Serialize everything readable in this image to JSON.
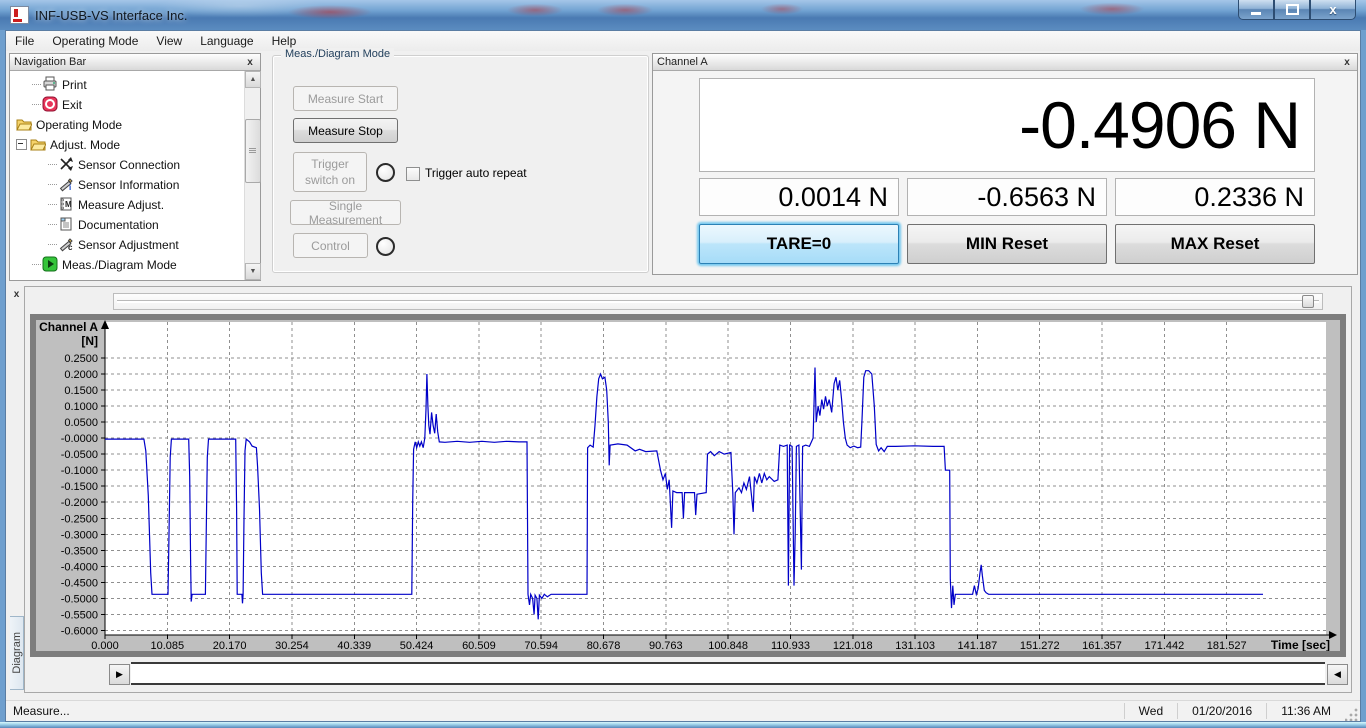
{
  "window": {
    "title": "INF-USB-VS Interface Inc."
  },
  "menu": {
    "items": [
      "File",
      "Operating Mode",
      "View",
      "Language",
      "Help"
    ]
  },
  "nav": {
    "title": "Navigation Bar",
    "items": [
      {
        "label": "Print",
        "icon": "printer",
        "indent": 1
      },
      {
        "label": "Exit",
        "icon": "exit",
        "indent": 1
      },
      {
        "label": "Operating Mode",
        "icon": "folder",
        "indent": 0
      },
      {
        "label": "Adjust. Mode",
        "icon": "folder",
        "indent": 0,
        "expander": true
      },
      {
        "label": "Sensor Connection",
        "icon": "sensor-connection",
        "indent": 2
      },
      {
        "label": "Sensor Information",
        "icon": "sensor-information",
        "indent": 2
      },
      {
        "label": "Measure Adjust.",
        "icon": "measure-adjust",
        "indent": 2
      },
      {
        "label": "Documentation",
        "icon": "documentation",
        "indent": 2
      },
      {
        "label": "Sensor Adjustment",
        "icon": "sensor-adjustment",
        "indent": 2
      },
      {
        "label": "Meas./Diagram Mode",
        "icon": "meas-diagram",
        "indent": 1
      }
    ]
  },
  "meas": {
    "title": "Meas./Diagram Mode",
    "measure_start": "Measure Start",
    "measure_stop": "Measure Stop",
    "trigger_switch_on": "Trigger switch on",
    "single_measurement": "Single Measurement",
    "control": "Control",
    "trigger_auto_repeat": "Trigger auto repeat"
  },
  "channel": {
    "title": "Channel A",
    "main_value": "-0.4906 N",
    "tare_value": "0.0014 N",
    "min_value": "-0.6563 N",
    "max_value": "0.2336 N",
    "tare_button": "TARE=0",
    "min_button": "MIN Reset",
    "max_button": "MAX Reset"
  },
  "diagram": {
    "tab_label": "Diagram"
  },
  "statusbar": {
    "message": "Measure...",
    "day": "Wed",
    "date": "01/20/2016",
    "time": "11:36 AM"
  },
  "chart_data": {
    "type": "line",
    "title": "Channel A",
    "y_unit": "[N]",
    "xlabel": "Time [sec]",
    "grid": "dashed",
    "line_color": "#0000c8",
    "xlim": [
      0,
      197.6
    ],
    "ylim": [
      -0.614,
      0.362
    ],
    "xticks": [
      "0.000",
      "10.085",
      "20.170",
      "30.254",
      "40.339",
      "50.424",
      "60.509",
      "70.594",
      "80.678",
      "90.763",
      "100.848",
      "110.933",
      "121.018",
      "131.103",
      "141.187",
      "151.272",
      "161.357",
      "171.442",
      "181.527"
    ],
    "yticks": [
      "0.2500",
      "0.2000",
      "0.1500",
      "0.1000",
      "0.0500",
      "-0.0000",
      "-0.0500",
      "-0.1000",
      "-0.1500",
      "-0.2000",
      "-0.2500",
      "-0.3000",
      "-0.3500",
      "-0.4000",
      "-0.4500",
      "-0.5000",
      "-0.5500",
      "-0.6000"
    ],
    "series": [
      {
        "name": "Channel A",
        "points": [
          [
            0,
            -0.003
          ],
          [
            6.3,
            -0.003
          ],
          [
            6.6,
            -0.04
          ],
          [
            7.0,
            -0.18
          ],
          [
            7.4,
            -0.42
          ],
          [
            7.6,
            -0.487
          ],
          [
            10.2,
            -0.487
          ],
          [
            10.35,
            -0.3
          ],
          [
            10.55,
            -0.06
          ],
          [
            10.75,
            -0.003
          ],
          [
            13.55,
            -0.003
          ],
          [
            13.7,
            -0.12
          ],
          [
            13.85,
            -0.38
          ],
          [
            13.95,
            -0.51
          ],
          [
            14.1,
            -0.487
          ],
          [
            16.25,
            -0.487
          ],
          [
            16.4,
            -0.28
          ],
          [
            16.55,
            -0.06
          ],
          [
            16.75,
            -0.003
          ],
          [
            21.15,
            -0.003
          ],
          [
            21.3,
            -0.22
          ],
          [
            21.4,
            -0.487
          ],
          [
            22.15,
            -0.487
          ],
          [
            22.25,
            -0.515
          ],
          [
            22.35,
            -0.487
          ],
          [
            22.5,
            -0.25
          ],
          [
            22.65,
            -0.04
          ],
          [
            22.85,
            -0.003
          ],
          [
            23.4,
            -0.012
          ],
          [
            23.8,
            -0.025
          ],
          [
            24.5,
            -0.03
          ],
          [
            24.7,
            -0.09
          ],
          [
            25.0,
            -0.22
          ],
          [
            25.3,
            -0.42
          ],
          [
            25.5,
            -0.487
          ],
          [
            49.65,
            -0.487
          ],
          [
            49.8,
            -0.2
          ],
          [
            49.95,
            -0.035
          ],
          [
            50.2,
            -0.012
          ],
          [
            50.45,
            -0.03
          ],
          [
            50.7,
            -0.012
          ],
          [
            50.95,
            -0.025
          ],
          [
            51.2,
            -0.012
          ],
          [
            51.5,
            -0.03
          ],
          [
            51.75,
            0
          ],
          [
            51.95,
            0.09
          ],
          [
            52.1,
            0.2
          ],
          [
            52.25,
            0.1
          ],
          [
            52.4,
            0.04
          ],
          [
            52.6,
            0.012
          ],
          [
            52.85,
            0.08
          ],
          [
            53.1,
            0.04
          ],
          [
            53.35,
            0.015
          ],
          [
            53.6,
            0.075
          ],
          [
            53.85,
            0.02
          ],
          [
            54.1,
            -0.012
          ],
          [
            55,
            -0.013
          ],
          [
            57,
            -0.01
          ],
          [
            59,
            -0.013
          ],
          [
            61,
            -0.01
          ],
          [
            63,
            -0.013
          ],
          [
            65,
            -0.01
          ],
          [
            67,
            -0.012
          ],
          [
            68.3,
            -0.012
          ],
          [
            68.45,
            -0.487
          ],
          [
            68.7,
            -0.52
          ],
          [
            68.9,
            -0.487
          ],
          [
            69.2,
            -0.5
          ],
          [
            69.45,
            -0.55
          ],
          [
            69.6,
            -0.49
          ],
          [
            69.9,
            -0.5
          ],
          [
            70.1,
            -0.565
          ],
          [
            70.3,
            -0.49
          ],
          [
            70.7,
            -0.5
          ],
          [
            71.1,
            -0.487
          ],
          [
            71.6,
            -0.495
          ],
          [
            72.2,
            -0.487
          ],
          [
            78.0,
            -0.487
          ],
          [
            78.1,
            -0.03
          ],
          [
            78.5,
            -0.022
          ],
          [
            79.0,
            -0.028
          ],
          [
            79.3,
            0.04
          ],
          [
            79.6,
            0.13
          ],
          [
            79.9,
            0.185
          ],
          [
            80.2,
            0.2
          ],
          [
            80.5,
            0.185
          ],
          [
            80.9,
            0.19
          ],
          [
            81.2,
            0.15
          ],
          [
            81.45,
            0.05
          ],
          [
            81.6,
            -0.085
          ],
          [
            81.75,
            -0.022
          ],
          [
            83,
            -0.018
          ],
          [
            84.5,
            -0.022
          ],
          [
            85.8,
            -0.04
          ],
          [
            86.5,
            -0.035
          ],
          [
            87.5,
            -0.042
          ],
          [
            89.3,
            -0.04
          ],
          [
            89.9,
            -0.1
          ],
          [
            90.3,
            -0.13
          ],
          [
            90.7,
            -0.11
          ],
          [
            91.0,
            -0.16
          ],
          [
            91.3,
            -0.13
          ],
          [
            91.7,
            -0.28
          ],
          [
            91.9,
            -0.165
          ],
          [
            92.5,
            -0.17
          ],
          [
            93.4,
            -0.17
          ],
          [
            93.6,
            -0.25
          ],
          [
            93.8,
            -0.17
          ],
          [
            95.4,
            -0.17
          ],
          [
            95.6,
            -0.24
          ],
          [
            95.8,
            -0.175
          ],
          [
            97.3,
            -0.17
          ],
          [
            97.5,
            -0.05
          ],
          [
            98.0,
            -0.042
          ],
          [
            98.6,
            -0.055
          ],
          [
            99.4,
            -0.042
          ],
          [
            100.2,
            -0.05
          ],
          [
            101.3,
            -0.045
          ],
          [
            101.6,
            -0.17
          ],
          [
            101.8,
            -0.3
          ],
          [
            102.0,
            -0.17
          ],
          [
            102.6,
            -0.155
          ],
          [
            103.0,
            -0.17
          ],
          [
            103.4,
            -0.14
          ],
          [
            103.8,
            -0.16
          ],
          [
            104.3,
            -0.12
          ],
          [
            104.9,
            -0.23
          ],
          [
            105.1,
            -0.12
          ],
          [
            105.5,
            -0.14
          ],
          [
            105.9,
            -0.11
          ],
          [
            106.3,
            -0.14
          ],
          [
            106.7,
            -0.11
          ],
          [
            107.1,
            -0.13
          ],
          [
            107.5,
            -0.12
          ],
          [
            108.3,
            -0.135
          ],
          [
            108.9,
            -0.13
          ],
          [
            109.2,
            -0.022
          ],
          [
            109.8,
            -0.026
          ],
          [
            110.4,
            -0.022
          ],
          [
            110.6,
            -0.46
          ],
          [
            110.8,
            -0.022
          ],
          [
            111.2,
            -0.026
          ],
          [
            111.5,
            -0.46
          ],
          [
            111.7,
            -0.3
          ],
          [
            111.9,
            -0.026
          ],
          [
            112.3,
            -0.022
          ],
          [
            112.7,
            -0.41
          ],
          [
            112.9,
            -0.026
          ],
          [
            113.4,
            -0.022
          ],
          [
            114.0,
            -0.026
          ],
          [
            114.6,
            0
          ],
          [
            114.9,
            0.22
          ],
          [
            115.1,
            0.05
          ],
          [
            115.4,
            0.1
          ],
          [
            115.7,
            0.07
          ],
          [
            116.0,
            0.12
          ],
          [
            116.3,
            0.09
          ],
          [
            116.6,
            0.13
          ],
          [
            116.9,
            0.1
          ],
          [
            117.2,
            0.12
          ],
          [
            117.6,
            0.08
          ],
          [
            118.0,
            0.17
          ],
          [
            118.3,
            0.19
          ],
          [
            118.6,
            0.15
          ],
          [
            118.9,
            0.18
          ],
          [
            119.2,
            0.12
          ],
          [
            119.5,
            0.05
          ],
          [
            119.8,
            0
          ],
          [
            120.1,
            -0.022
          ],
          [
            120.6,
            -0.03
          ],
          [
            121.2,
            -0.025
          ],
          [
            121.8,
            -0.03
          ],
          [
            122.3,
            -0.028
          ],
          [
            122.5,
            0.05
          ],
          [
            122.8,
            0.19
          ],
          [
            123.1,
            0.21
          ],
          [
            123.6,
            0.21
          ],
          [
            124.1,
            0.2
          ],
          [
            124.5,
            0.1
          ],
          [
            124.8,
            -0.02
          ],
          [
            125.2,
            -0.04
          ],
          [
            125.6,
            -0.03
          ],
          [
            126.1,
            -0.042
          ],
          [
            126.6,
            -0.026
          ],
          [
            128,
            -0.026
          ],
          [
            131,
            -0.024
          ],
          [
            134,
            -0.026
          ],
          [
            135.8,
            -0.026
          ],
          [
            136.0,
            -0.1
          ],
          [
            136.7,
            -0.1
          ],
          [
            136.8,
            -0.44
          ],
          [
            137.0,
            -0.53
          ],
          [
            137.2,
            -0.46
          ],
          [
            137.4,
            -0.52
          ],
          [
            137.6,
            -0.487
          ],
          [
            140.4,
            -0.487
          ],
          [
            140.7,
            -0.46
          ],
          [
            141.0,
            -0.487
          ],
          [
            141.3,
            -0.47
          ],
          [
            141.6,
            -0.42
          ],
          [
            141.8,
            -0.395
          ],
          [
            142.0,
            -0.43
          ],
          [
            142.3,
            -0.475
          ],
          [
            142.6,
            -0.482
          ],
          [
            143.0,
            -0.487
          ],
          [
            150,
            -0.487
          ],
          [
            160,
            -0.487
          ],
          [
            170,
            -0.487
          ],
          [
            180,
            -0.487
          ],
          [
            187.4,
            -0.487
          ]
        ]
      }
    ]
  }
}
